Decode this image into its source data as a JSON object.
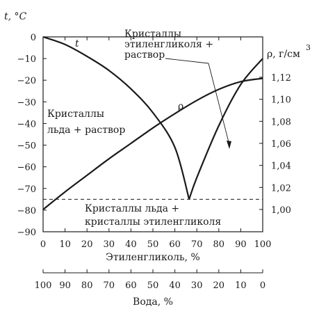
{
  "chart_data": {
    "type": "line",
    "title": "",
    "xlabel": "Этиленгликоль, %",
    "x2label": "Вода, %",
    "ylabel_left": "t, °C",
    "ylabel_right": "ρ, г/см",
    "ylabel_right_sup": "3",
    "xlim": [
      0,
      100
    ],
    "ylim_left": [
      -90,
      0
    ],
    "ylim_right": [
      1.0,
      1.12
    ],
    "x_ticks": [
      "0",
      "10",
      "20",
      "30",
      "40",
      "50",
      "60",
      "70",
      "80",
      "90",
      "100"
    ],
    "x2_ticks": [
      "100",
      "90",
      "80",
      "70",
      "60",
      "50",
      "40",
      "30",
      "20",
      "10",
      "0"
    ],
    "y_left_ticks": [
      "0",
      "-10",
      "-20",
      "-30",
      "-40",
      "-50",
      "-60",
      "-70",
      "-80",
      "-90"
    ],
    "y_right_ticks": [
      "1,12",
      "1,10",
      "1,08",
      "1,06",
      "1,04",
      "1,02",
      "1,00"
    ],
    "grid": false,
    "series": [
      {
        "name": "t",
        "axis": "left",
        "x": [
          0,
          10,
          20,
          30,
          40,
          50,
          60,
          66.5,
          70,
          80,
          90,
          100
        ],
        "y": [
          0,
          -3.5,
          -9,
          -15.5,
          -24,
          -35,
          -51,
          -75,
          -65,
          -41,
          -22,
          -10
        ]
      },
      {
        "name": "ρ",
        "axis": "right",
        "x": [
          0,
          10,
          20,
          30,
          40,
          50,
          60,
          70,
          80,
          90,
          100
        ],
        "y": [
          1.0,
          1.016,
          1.031,
          1.046,
          1.06,
          1.074,
          1.087,
          1.099,
          1.109,
          1.116,
          1.119
        ]
      }
    ],
    "eutectic_line": {
      "y": -75
    },
    "annotations": {
      "ethylene_glycol_crystals": [
        "Кристаллы",
        "этиленгликоля +",
        "раствор"
      ],
      "ice_crystals": [
        "Кристаллы",
        "льда + раствор"
      ],
      "both_crystals": [
        "Кристаллы льда +",
        "кристаллы этиленгликоля"
      ]
    }
  }
}
